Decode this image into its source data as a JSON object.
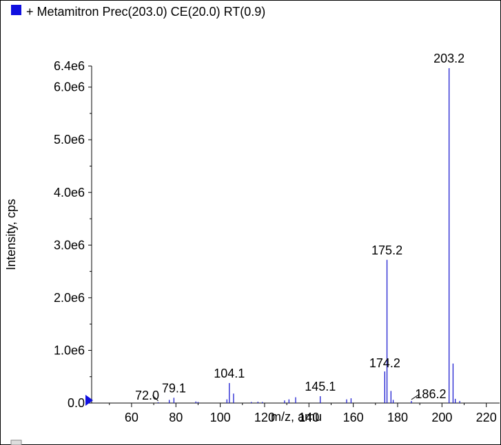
{
  "colors": {
    "series": "#1a1ad0",
    "legend_marker": "#1010e0",
    "axis": "#000000",
    "border": "#000000"
  },
  "chart_data": {
    "type": "bar",
    "title": "+ Metamitron Prec(203.0) CE(20.0) RT(0.9)",
    "xlabel": "m/z, amu",
    "ylabel": "Intensity, cps",
    "xlim": [
      42,
      226
    ],
    "ylim": [
      0,
      6400000
    ],
    "grid": false,
    "x_ticks": [
      60,
      80,
      100,
      120,
      140,
      160,
      180,
      200,
      220
    ],
    "x_tick_labels": [
      "60",
      "80",
      "100",
      "120",
      "140",
      "160",
      "180",
      "200",
      "220"
    ],
    "y_ticks": [
      0,
      1000000,
      2000000,
      3000000,
      4000000,
      5000000,
      6000000,
      6400000
    ],
    "y_tick_labels": [
      "0.0",
      "1.0e6",
      "2.0e6",
      "3.0e6",
      "4.0e6",
      "5.0e6",
      "6.0e6",
      "6.4e6"
    ],
    "peaks": [
      {
        "x": 72.0,
        "y": 15000
      },
      {
        "x": 77.0,
        "y": 60000
      },
      {
        "x": 79.1,
        "y": 100000
      },
      {
        "x": 89.0,
        "y": 30000
      },
      {
        "x": 90.0,
        "y": 20000
      },
      {
        "x": 103.0,
        "y": 70000
      },
      {
        "x": 104.1,
        "y": 380000
      },
      {
        "x": 106.0,
        "y": 180000
      },
      {
        "x": 114.0,
        "y": 20000
      },
      {
        "x": 117.0,
        "y": 25000
      },
      {
        "x": 119.0,
        "y": 20000
      },
      {
        "x": 129.0,
        "y": 50000
      },
      {
        "x": 131.0,
        "y": 70000
      },
      {
        "x": 134.0,
        "y": 110000
      },
      {
        "x": 145.1,
        "y": 130000
      },
      {
        "x": 157.0,
        "y": 70000
      },
      {
        "x": 159.0,
        "y": 90000
      },
      {
        "x": 174.2,
        "y": 600000
      },
      {
        "x": 175.2,
        "y": 2720000
      },
      {
        "x": 177.0,
        "y": 230000
      },
      {
        "x": 178.0,
        "y": 60000
      },
      {
        "x": 186.2,
        "y": 40000
      },
      {
        "x": 203.2,
        "y": 6360000
      },
      {
        "x": 205.0,
        "y": 750000
      },
      {
        "x": 206.0,
        "y": 80000
      },
      {
        "x": 208.0,
        "y": 40000
      }
    ],
    "peak_labels": [
      {
        "x": 72.0,
        "y": 15000,
        "text": "72.0"
      },
      {
        "x": 79.1,
        "y": 100000,
        "text": "79.1"
      },
      {
        "x": 104.1,
        "y": 380000,
        "text": "104.1"
      },
      {
        "x": 145.1,
        "y": 130000,
        "text": "145.1"
      },
      {
        "x": 174.2,
        "y": 600000,
        "text": "174.2"
      },
      {
        "x": 175.2,
        "y": 2720000,
        "text": "175.2"
      },
      {
        "x": 186.2,
        "y": 40000,
        "text": "186.2"
      },
      {
        "x": 203.2,
        "y": 6360000,
        "text": "203.2"
      }
    ]
  }
}
